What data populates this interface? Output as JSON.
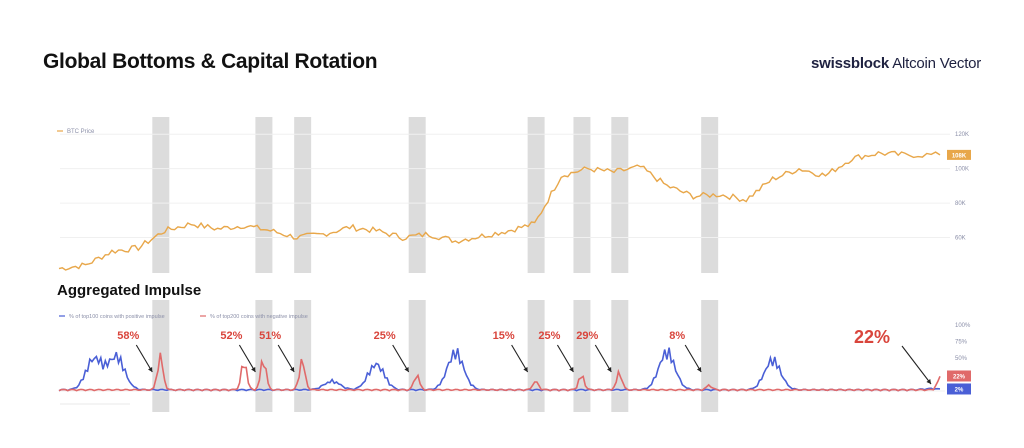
{
  "header": {
    "title": "Global Bottoms & Capital Rotation",
    "brand_bold": "swissblock",
    "brand_light": "Altcoin Vector"
  },
  "colors": {
    "btc": "#e8a74a",
    "positive": "#4a5fd6",
    "negative": "#e06a6a",
    "annotation": "#d9453c",
    "band": "#dcdcdc",
    "grid": "#f0f0f0",
    "axis_text": "#8b8fa8"
  },
  "chart_data": [
    {
      "type": "line",
      "title": "BTC Price",
      "legend": [
        "BTC Price"
      ],
      "legend_position": "top-left",
      "y_ticks": [
        "60K",
        "80K",
        "100K",
        "120K"
      ],
      "ylim": [
        40000,
        130000
      ],
      "last_value_label": "108K",
      "grid": true,
      "series": [
        {
          "name": "BTC Price",
          "x": [
            0,
            3,
            6,
            9,
            12,
            15,
            18,
            21,
            24,
            27,
            30,
            33,
            36,
            39,
            42,
            45,
            48,
            51,
            54,
            57,
            60,
            63,
            66,
            69,
            72,
            75,
            78,
            81,
            84,
            87,
            90,
            93,
            96,
            100
          ],
          "values": [
            42000,
            44000,
            52000,
            54000,
            64000,
            68000,
            65000,
            67000,
            64000,
            60000,
            62000,
            66000,
            64000,
            60000,
            62000,
            58000,
            61000,
            64000,
            68000,
            96000,
            100000,
            98000,
            101000,
            90000,
            84000,
            85000,
            82000,
            94000,
            100000,
            96000,
            106000,
            109000,
            108000,
            108000
          ]
        }
      ],
      "highlight_bands_x": [
        11.5,
        23.2,
        27.6,
        40.6,
        54.1,
        59.3,
        63.6,
        73.8
      ]
    },
    {
      "type": "line",
      "title": "Aggregated Impulse",
      "legend": [
        "% of top100 coins with positive impulse",
        "% of top200 coins with negative impulse"
      ],
      "legend_position": "top-left",
      "y_ticks": [
        "50%",
        "75%",
        "100%"
      ],
      "ylim": [
        0,
        100
      ],
      "last_value_labels": {
        "negative": "22%",
        "positive": "2%"
      },
      "annotations": [
        {
          "label": "58%",
          "x": 11.5
        },
        {
          "label": "52%",
          "x": 23.2
        },
        {
          "label": "51%",
          "x": 27.6
        },
        {
          "label": "25%",
          "x": 40.6
        },
        {
          "label": "15%",
          "x": 54.1
        },
        {
          "label": "25%",
          "x": 59.3
        },
        {
          "label": "29%",
          "x": 63.6
        },
        {
          "label": "8%",
          "x": 73.8
        },
        {
          "label": "22%",
          "x": 100
        }
      ],
      "series": [
        {
          "name": "% of top100 coins with positive impulse",
          "peaks": [
            {
              "x": 4,
              "value": 55
            },
            {
              "x": 6.5,
              "value": 58
            },
            {
              "x": 31,
              "value": 15
            },
            {
              "x": 36,
              "value": 45
            },
            {
              "x": 45,
              "value": 65
            },
            {
              "x": 69,
              "value": 66
            },
            {
              "x": 81,
              "value": 52
            },
            {
              "x": 99,
              "value": 2
            }
          ]
        },
        {
          "name": "% of top200 coins with negative impulse",
          "peaks": [
            {
              "x": 11.5,
              "value": 58
            },
            {
              "x": 21,
              "value": 48
            },
            {
              "x": 23.2,
              "value": 52
            },
            {
              "x": 27.6,
              "value": 51
            },
            {
              "x": 40.6,
              "value": 25
            },
            {
              "x": 54.1,
              "value": 15
            },
            {
              "x": 59.3,
              "value": 25
            },
            {
              "x": 63.6,
              "value": 29
            },
            {
              "x": 73.8,
              "value": 8
            },
            {
              "x": 100,
              "value": 22
            }
          ]
        }
      ]
    }
  ]
}
